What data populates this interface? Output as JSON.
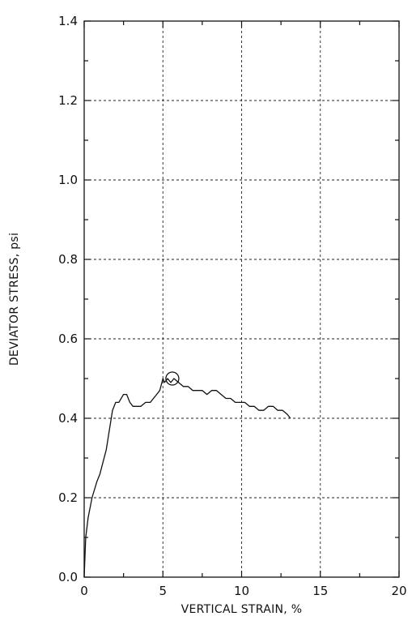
{
  "chart_data": {
    "type": "line",
    "title": "",
    "xlabel": "VERTICAL STRAIN, %",
    "ylabel": "DEVIATOR STRESS, psi",
    "xlim": [
      0,
      20
    ],
    "ylim": [
      0,
      1.4
    ],
    "x_ticks": [
      "0",
      "5",
      "10",
      "15",
      "20"
    ],
    "y_ticks": [
      "0.0",
      "0.2",
      "0.4",
      "0.6",
      "0.8",
      "1.0",
      "1.2",
      "1.4"
    ],
    "grid": true,
    "series": [
      {
        "x": [
          0,
          0.1,
          0.25,
          0.5,
          0.8,
          1.0,
          1.2,
          1.4,
          1.6,
          1.8,
          2.0,
          2.2,
          2.5,
          2.7,
          2.9,
          3.1,
          3.3,
          3.6,
          3.9,
          4.2,
          4.4,
          4.6,
          4.8,
          5.0,
          5.1,
          5.3,
          5.5,
          5.7,
          6.0,
          6.3,
          6.6,
          6.9,
          7.2,
          7.5,
          7.8,
          8.1,
          8.4,
          8.7,
          9.0,
          9.3,
          9.6,
          9.9,
          10.2,
          10.5,
          10.8,
          11.1,
          11.4,
          11.7,
          12.0,
          12.3,
          12.6,
          12.9,
          13.1
        ],
        "y": [
          0.0,
          0.1,
          0.15,
          0.2,
          0.24,
          0.26,
          0.29,
          0.32,
          0.37,
          0.42,
          0.44,
          0.44,
          0.46,
          0.46,
          0.44,
          0.43,
          0.43,
          0.43,
          0.44,
          0.44,
          0.45,
          0.46,
          0.47,
          0.5,
          0.49,
          0.5,
          0.49,
          0.5,
          0.49,
          0.48,
          0.48,
          0.47,
          0.47,
          0.47,
          0.46,
          0.47,
          0.47,
          0.46,
          0.45,
          0.45,
          0.44,
          0.44,
          0.44,
          0.43,
          0.43,
          0.42,
          0.42,
          0.43,
          0.43,
          0.42,
          0.42,
          0.41,
          0.4
        ]
      }
    ],
    "annotations": [
      {
        "type": "circle-marker",
        "x": 5.6,
        "y": 0.5
      }
    ]
  }
}
